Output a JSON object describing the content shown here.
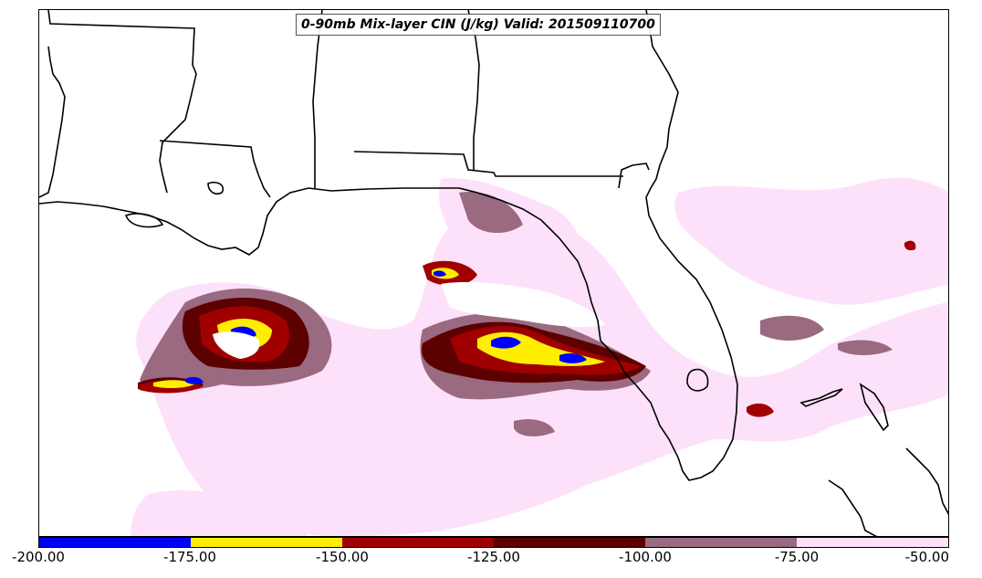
{
  "title": "0-90mb Mix-layer CIN (J/kg) Valid: 201509110700",
  "colorbar": {
    "ticks": [
      "-200.00",
      "-175.00",
      "-150.00",
      "-125.00",
      "-100.00",
      "-75.00",
      "-50.00"
    ],
    "colors": [
      "#0000ff",
      "#ffee00",
      "#a00000",
      "#5c0000",
      "#9a6a80",
      "#fde1fa"
    ]
  },
  "chart_data": {
    "type": "heatmap",
    "title": "0-90mb Mix-layer CIN (J/kg) Valid: 201509110700",
    "variable": "0-90mb Mix-layer CIN",
    "units": "J/kg",
    "valid": "201509110700",
    "colorbar_range": [
      -200,
      -50
    ],
    "colorbar_levels": [
      -200,
      -175,
      -150,
      -125,
      -100,
      -75,
      -50
    ],
    "colors": [
      "#0000ff",
      "#ffee00",
      "#a00000",
      "#5c0000",
      "#9a6a80",
      "#fde1fa"
    ]
  }
}
